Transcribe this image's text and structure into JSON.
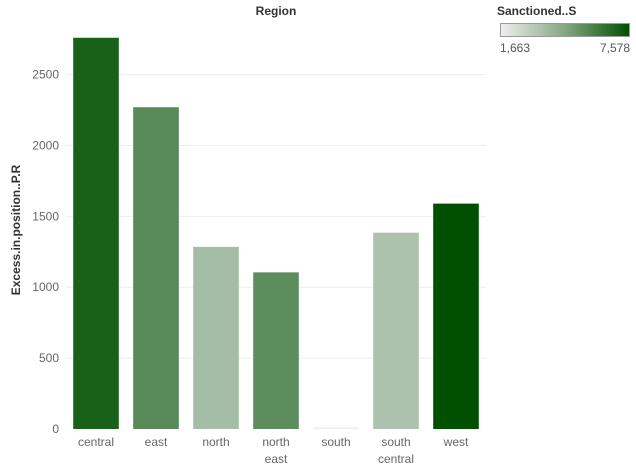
{
  "chart_data": {
    "type": "bar",
    "title": "Region",
    "ylabel": "Excess.in.position..P.R",
    "categories": [
      [
        "central"
      ],
      [
        "east"
      ],
      [
        "north"
      ],
      [
        "north",
        "east"
      ],
      [
        "south"
      ],
      [
        "south",
        "central"
      ],
      [
        "west"
      ]
    ],
    "values": [
      2760,
      2270,
      1285,
      1105,
      10,
      1385,
      1590
    ],
    "color_values": [
      6950,
      5400,
      3500,
      5300,
      1663,
      3300,
      7578
    ],
    "ylim": [
      0,
      2850
    ],
    "yticks": [
      0,
      500,
      1000,
      1500,
      2000,
      2500
    ],
    "grid": true,
    "legend": {
      "title": "Sanctioned..S",
      "min_label": "1,663",
      "max_label": "7,578",
      "min": 1663,
      "max": 7578,
      "color_low": "#eeeeee",
      "color_high": "#005000",
      "placement": "top-right"
    }
  }
}
